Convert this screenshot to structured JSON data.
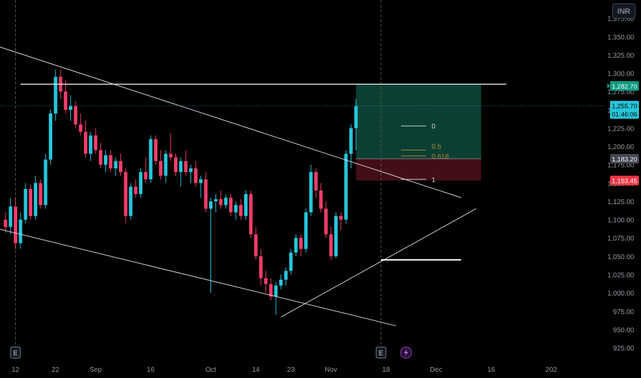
{
  "currency_button": "INR",
  "colors": {
    "bull": "#26c6da",
    "bear": "#f23d6b",
    "background": "#000000",
    "axis_text": "#9598a1",
    "trendline": "#d1d4dc",
    "target_zone": "#0e4a3c",
    "stop_zone": "#4a0f17",
    "fib_line": "#a58b3b",
    "last_price_badge": "#26c6da",
    "level_badge": "#089981",
    "mark_badge": "#f23645",
    "mid_badge": "#434651"
  },
  "chart_data": {
    "type": "candlestick",
    "title": "",
    "ylim": [
      910,
      1400
    ],
    "price_ticks": [
      925,
      950,
      975,
      1000,
      1025,
      1050,
      1075,
      1100,
      1125,
      1150,
      1175,
      1200,
      1225,
      1250,
      1275,
      1300,
      1325,
      1350,
      1375
    ],
    "price_tick_labels": [
      "925.00",
      "950.00",
      "975.00",
      "1,000.00",
      "1,025.00",
      "1,050.00",
      "1,075.00",
      "1,100.00",
      "1,125.00",
      "1,150.00",
      "1,175.00",
      "1,200.00",
      "1,225.00",
      "1,250.00",
      "1,275.00",
      "1,300.00",
      "1,325.00",
      "1,350.00",
      "1,375.00"
    ],
    "time_ticks": [
      {
        "label": "12",
        "bar": 2
      },
      {
        "label": "22",
        "bar": 10
      },
      {
        "label": "Sep",
        "bar": 18
      },
      {
        "label": "16",
        "bar": 29
      },
      {
        "label": "Oct",
        "bar": 41
      },
      {
        "label": "14",
        "bar": 50
      },
      {
        "label": "23",
        "bar": 57
      },
      {
        "label": "Nov",
        "bar": 65
      },
      {
        "label": "18",
        "bar": 76
      },
      {
        "label": "Dec",
        "bar": 86
      },
      {
        "label": "16",
        "bar": 97
      },
      {
        "label": "202",
        "bar": 109
      }
    ],
    "event_markers": [
      {
        "label": "E",
        "bar": 2
      },
      {
        "label": "E",
        "bar": 75
      }
    ],
    "dividend_marker_bar": 80,
    "candles": [
      [
        1100,
        1110,
        1082,
        1090
      ],
      [
        1090,
        1130,
        1080,
        1118
      ],
      [
        1118,
        1130,
        1060,
        1068
      ],
      [
        1068,
        1110,
        1060,
        1100
      ],
      [
        1100,
        1150,
        1095,
        1142
      ],
      [
        1142,
        1148,
        1100,
        1105
      ],
      [
        1105,
        1160,
        1100,
        1150
      ],
      [
        1150,
        1155,
        1115,
        1120
      ],
      [
        1120,
        1190,
        1115,
        1182
      ],
      [
        1182,
        1250,
        1175,
        1245
      ],
      [
        1245,
        1305,
        1235,
        1295
      ],
      [
        1295,
        1305,
        1265,
        1275
      ],
      [
        1275,
        1290,
        1245,
        1250
      ],
      [
        1250,
        1270,
        1235,
        1255
      ],
      [
        1255,
        1262,
        1225,
        1230
      ],
      [
        1230,
        1245,
        1215,
        1220
      ],
      [
        1220,
        1235,
        1185,
        1190
      ],
      [
        1190,
        1220,
        1180,
        1215
      ],
      [
        1215,
        1225,
        1190,
        1195
      ],
      [
        1195,
        1205,
        1170,
        1175
      ],
      [
        1175,
        1195,
        1165,
        1188
      ],
      [
        1188,
        1195,
        1165,
        1170
      ],
      [
        1170,
        1185,
        1160,
        1180
      ],
      [
        1180,
        1190,
        1160,
        1165
      ],
      [
        1165,
        1170,
        1095,
        1105
      ],
      [
        1105,
        1150,
        1100,
        1145
      ],
      [
        1145,
        1155,
        1130,
        1135
      ],
      [
        1135,
        1170,
        1130,
        1165
      ],
      [
        1165,
        1185,
        1150,
        1155
      ],
      [
        1155,
        1215,
        1150,
        1210
      ],
      [
        1210,
        1215,
        1175,
        1180
      ],
      [
        1180,
        1195,
        1155,
        1160
      ],
      [
        1160,
        1195,
        1150,
        1190
      ],
      [
        1190,
        1218,
        1180,
        1185
      ],
      [
        1185,
        1190,
        1160,
        1165
      ],
      [
        1165,
        1185,
        1145,
        1180
      ],
      [
        1180,
        1195,
        1160,
        1165
      ],
      [
        1165,
        1175,
        1150,
        1170
      ],
      [
        1170,
        1180,
        1145,
        1150
      ],
      [
        1150,
        1160,
        1130,
        1155
      ],
      [
        1155,
        1165,
        1110,
        1115
      ],
      [
        1115,
        1130,
        1000,
        1125
      ],
      [
        1125,
        1135,
        1110,
        1128
      ],
      [
        1128,
        1140,
        1115,
        1120
      ],
      [
        1120,
        1135,
        1115,
        1130
      ],
      [
        1130,
        1135,
        1105,
        1110
      ],
      [
        1110,
        1125,
        1100,
        1120
      ],
      [
        1120,
        1128,
        1100,
        1105
      ],
      [
        1105,
        1140,
        1100,
        1135
      ],
      [
        1135,
        1140,
        1075,
        1080
      ],
      [
        1080,
        1090,
        1045,
        1050
      ],
      [
        1050,
        1060,
        1010,
        1020
      ],
      [
        1020,
        1030,
        1000,
        1012
      ],
      [
        1012,
        1020,
        990,
        995
      ],
      [
        995,
        1015,
        970,
        1010
      ],
      [
        1010,
        1025,
        1005,
        1018
      ],
      [
        1018,
        1035,
        1010,
        1030
      ],
      [
        1030,
        1060,
        1025,
        1055
      ],
      [
        1055,
        1080,
        1050,
        1075
      ],
      [
        1075,
        1080,
        1050,
        1060
      ],
      [
        1060,
        1115,
        1055,
        1110
      ],
      [
        1110,
        1175,
        1105,
        1165
      ],
      [
        1165,
        1170,
        1130,
        1140
      ],
      [
        1140,
        1150,
        1110,
        1115
      ],
      [
        1115,
        1125,
        1075,
        1080
      ],
      [
        1080,
        1090,
        1045,
        1050
      ],
      [
        1050,
        1110,
        1048,
        1105
      ],
      [
        1105,
        1110,
        1085,
        1100
      ],
      [
        1100,
        1195,
        1095,
        1190
      ],
      [
        1190,
        1230,
        1170,
        1225
      ],
      [
        1225,
        1265,
        1195,
        1255
      ]
    ],
    "last_price_label": "1,255.70",
    "countdown_label": "01:46:06",
    "level_labels": [
      {
        "value": 1282.7,
        "label": "1,282.70",
        "type": "level"
      },
      {
        "value": 1255.7,
        "label": "1,255.70",
        "type": "last"
      },
      {
        "value": 1183.2,
        "label": "1,183.20",
        "type": "mid"
      },
      {
        "value": 1153.45,
        "label": "1,153.45",
        "type": "mark"
      }
    ],
    "horizontal_levels": [
      {
        "value": 1285,
        "from_bar": 3,
        "to_bar": 100
      },
      {
        "value": 1045,
        "from_bar": 75,
        "to_bar": 91
      }
    ],
    "trendlines": [
      {
        "from": [
          -3,
          1340
        ],
        "to": [
          91,
          1130
        ]
      },
      {
        "from": [
          -3,
          1090
        ],
        "to": [
          78,
          955
        ]
      },
      {
        "from": [
          55,
          967
        ],
        "to": [
          94,
          1115
        ]
      }
    ],
    "position": {
      "from_bar": 70,
      "to_bar": 95,
      "entry": 1183.2,
      "target": 1285,
      "stop": 1153.45
    },
    "fib_levels": [
      {
        "label": "0",
        "value": 1228,
        "from_bar": 79,
        "to_bar": 84
      },
      {
        "label": "0.5",
        "value": 1195,
        "from_bar": 79,
        "to_bar": 84
      },
      {
        "label": "0.618",
        "value": 1187,
        "from_bar": 79,
        "to_bar": 84
      },
      {
        "label": "1",
        "value": 1155,
        "from_bar": 79,
        "to_bar": 84
      }
    ]
  }
}
